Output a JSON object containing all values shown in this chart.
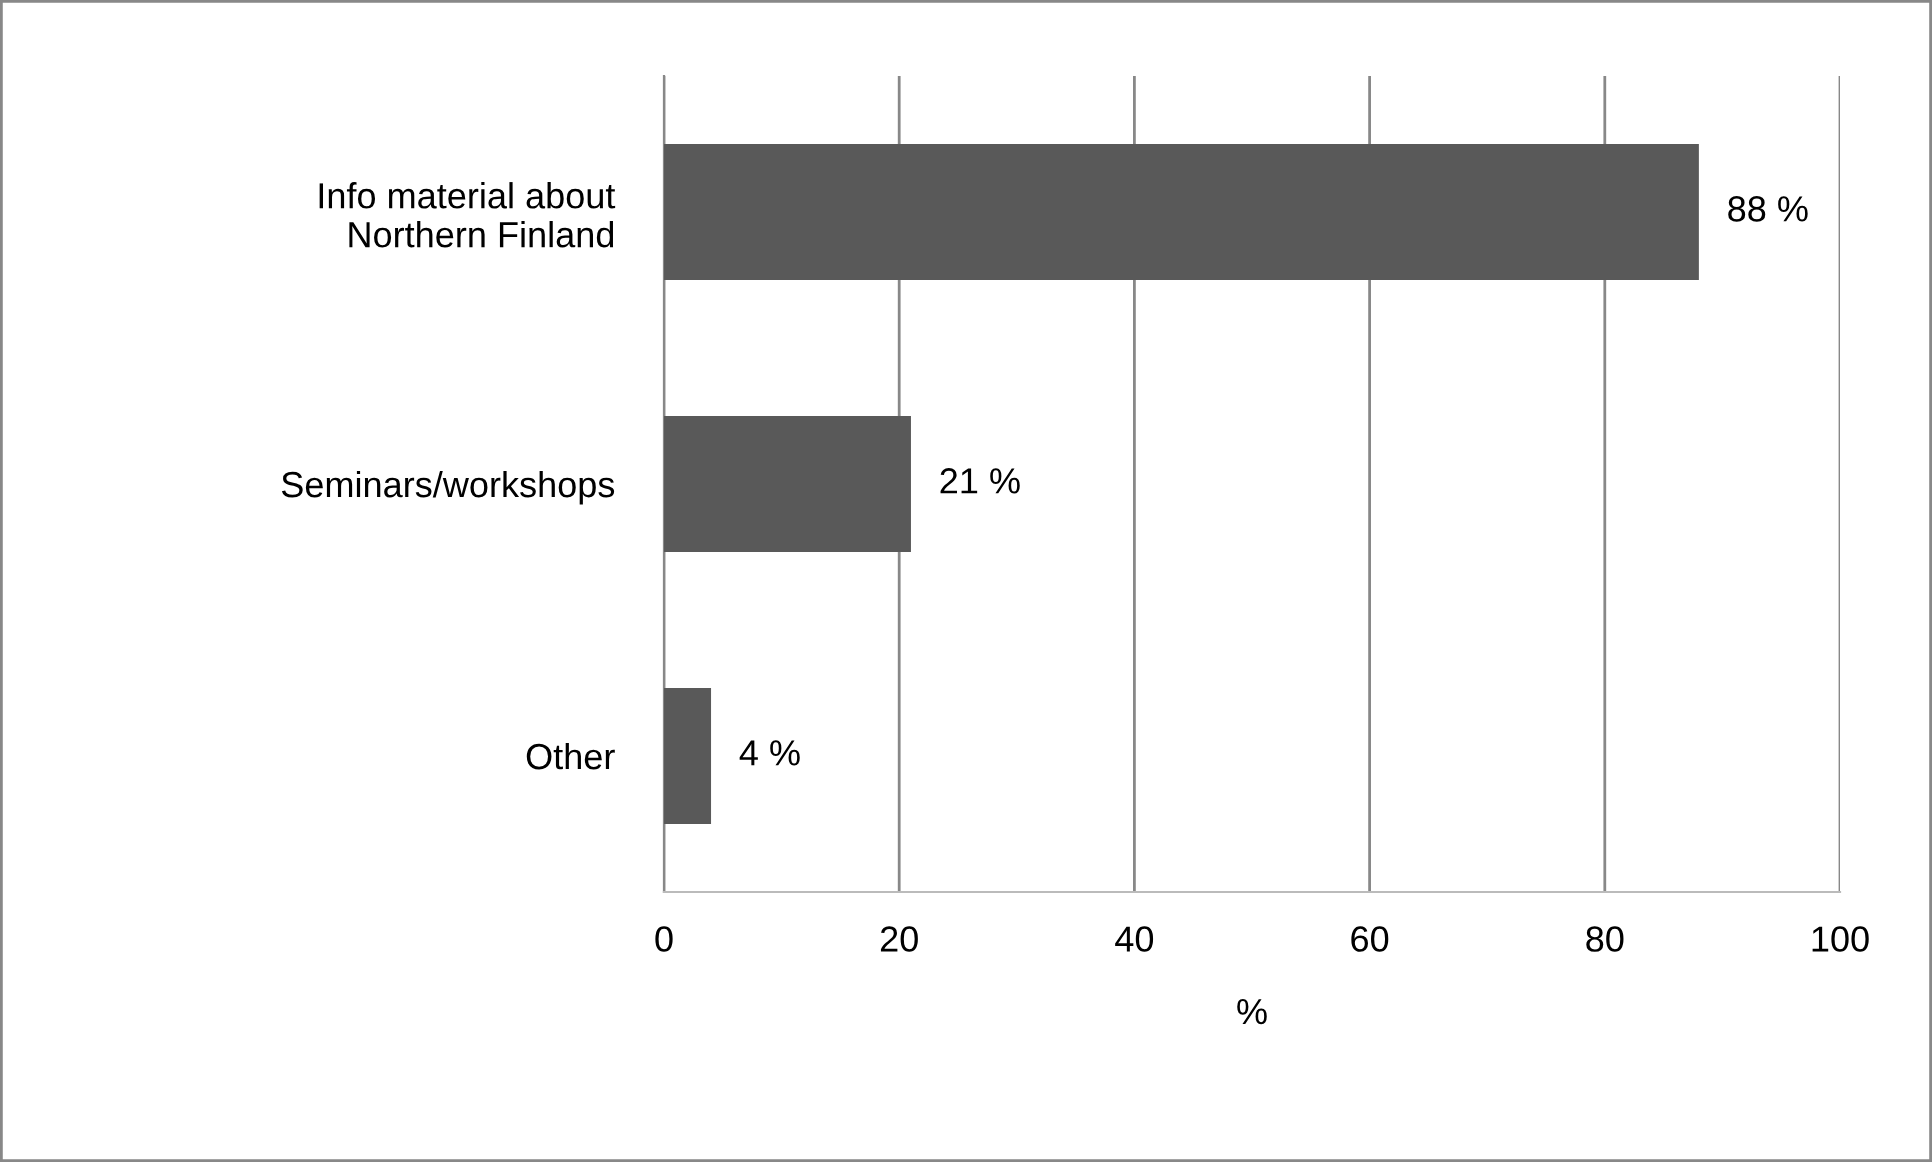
{
  "chart_data": {
    "type": "bar",
    "orientation": "horizontal",
    "xlabel": "%",
    "categories": [
      "Info material about\nNorthern Finland",
      "Seminars/workshops",
      "Other"
    ],
    "values": [
      88,
      21,
      4
    ],
    "color": "#595959",
    "value_labels": [
      "88 %",
      "21 %",
      "4 %"
    ],
    "xlim": [
      0,
      100
    ],
    "xticks": [
      0,
      20,
      40,
      60,
      80,
      100
    ],
    "grid": "x",
    "legend": false
  }
}
